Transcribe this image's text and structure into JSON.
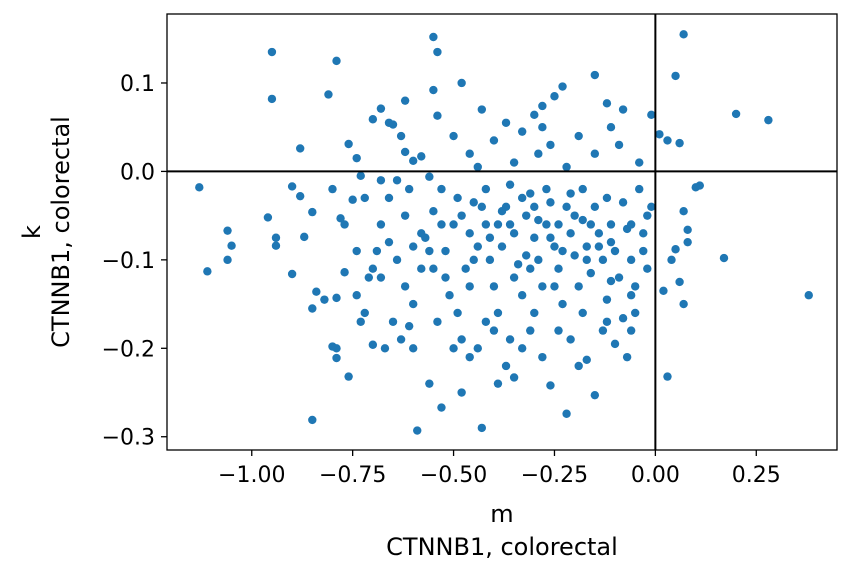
{
  "chart_data": {
    "type": "scatter",
    "title": "",
    "xlabel_line1": "m",
    "xlabel_line2": "CTNNB1, colorectal",
    "ylabel_line1": "k",
    "ylabel_line2": "CTNNB1, colorectal",
    "xlim": [
      -1.21,
      0.45
    ],
    "ylim": [
      -0.315,
      0.178
    ],
    "xticks": [
      -1.0,
      -0.75,
      -0.5,
      -0.25,
      0.0,
      0.25
    ],
    "xtick_labels": [
      "−1.00",
      "−0.75",
      "−0.50",
      "−0.25",
      "0.00",
      "0.25"
    ],
    "yticks": [
      0.1,
      0.0,
      -0.1,
      -0.2,
      -0.3
    ],
    "ytick_labels": [
      "0.1",
      "0.0",
      "−0.1",
      "−0.2",
      "−0.3"
    ],
    "reference_lines": {
      "x": 0.0,
      "y": 0.0
    },
    "marker_color": "#1f77b4",
    "grid": false,
    "legend": "none",
    "points": [
      [
        -1.13,
        -0.018
      ],
      [
        -1.11,
        -0.113
      ],
      [
        -1.06,
        -0.067
      ],
      [
        -1.06,
        -0.1
      ],
      [
        -1.05,
        -0.084
      ],
      [
        -0.95,
        0.135
      ],
      [
        -0.95,
        0.082
      ],
      [
        -0.94,
        -0.075
      ],
      [
        -0.94,
        -0.084
      ],
      [
        -0.96,
        -0.052
      ],
      [
        -0.9,
        -0.017
      ],
      [
        -0.88,
        -0.028
      ],
      [
        -0.9,
        -0.116
      ],
      [
        -0.87,
        -0.074
      ],
      [
        -0.85,
        -0.046
      ],
      [
        -0.84,
        -0.136
      ],
      [
        -0.85,
        -0.281
      ],
      [
        -0.88,
        0.026
      ],
      [
        -0.81,
        0.087
      ],
      [
        -0.79,
        0.125
      ],
      [
        -0.8,
        -0.02
      ],
      [
        -0.78,
        -0.053
      ],
      [
        -0.82,
        -0.145
      ],
      [
        -0.79,
        -0.143
      ],
      [
        -0.76,
        -0.232
      ],
      [
        -0.79,
        -0.2
      ],
      [
        -0.8,
        -0.198
      ],
      [
        -0.79,
        -0.211
      ],
      [
        -0.77,
        -0.114
      ],
      [
        -0.75,
        -0.032
      ],
      [
        -0.85,
        -0.155
      ],
      [
        -0.76,
        0.031
      ],
      [
        -0.74,
        0.015
      ],
      [
        -0.7,
        0.059
      ],
      [
        -0.68,
        0.071
      ],
      [
        -0.66,
        0.055
      ],
      [
        -0.65,
        0.053
      ],
      [
        -0.63,
        0.04
      ],
      [
        -0.68,
        -0.01
      ],
      [
        -0.73,
        -0.005
      ],
      [
        -0.6,
        0.012
      ],
      [
        -0.62,
        0.022
      ],
      [
        -0.58,
        0.017
      ],
      [
        -0.61,
        -0.02
      ],
      [
        -0.56,
        -0.006
      ],
      [
        -0.62,
        0.08
      ],
      [
        -0.55,
        0.092
      ],
      [
        -0.54,
        0.063
      ],
      [
        -0.55,
        0.152
      ],
      [
        -0.54,
        0.135
      ],
      [
        -0.48,
        0.1
      ],
      [
        -0.43,
        0.07
      ],
      [
        -0.37,
        0.055
      ],
      [
        -0.3,
        0.064
      ],
      [
        -0.28,
        0.05
      ],
      [
        -0.25,
        0.085
      ],
      [
        -0.23,
        0.096
      ],
      [
        -0.28,
        0.074
      ],
      [
        -0.15,
        0.109
      ],
      [
        -0.12,
        0.077
      ],
      [
        -0.08,
        0.07
      ],
      [
        -0.01,
        0.064
      ],
      [
        0.01,
        0.042
      ],
      [
        0.07,
        0.155
      ],
      [
        0.05,
        0.108
      ],
      [
        0.06,
        0.032
      ],
      [
        0.03,
        0.035
      ],
      [
        0.2,
        0.065
      ],
      [
        0.28,
        0.058
      ],
      [
        0.38,
        -0.14
      ],
      [
        0.17,
        -0.098
      ],
      [
        0.11,
        -0.016
      ],
      [
        0.1,
        -0.018
      ],
      [
        0.07,
        -0.045
      ],
      [
        0.08,
        -0.066
      ],
      [
        0.08,
        -0.08
      ],
      [
        0.05,
        -0.088
      ],
      [
        0.04,
        -0.1
      ],
      [
        0.07,
        -0.15
      ],
      [
        0.02,
        -0.135
      ],
      [
        0.03,
        -0.232
      ],
      [
        0.06,
        -0.125
      ],
      [
        -0.02,
        -0.05
      ],
      [
        -0.03,
        -0.09
      ],
      [
        -0.05,
        -0.16
      ],
      [
        -0.06,
        -0.18
      ],
      [
        -0.08,
        -0.166
      ],
      [
        -0.07,
        -0.21
      ],
      [
        -0.1,
        -0.195
      ],
      [
        -0.11,
        -0.124
      ],
      [
        -0.13,
        -0.18
      ],
      [
        -0.15,
        -0.253
      ],
      [
        -0.17,
        -0.213
      ],
      [
        -0.19,
        -0.22
      ],
      [
        -0.21,
        -0.19
      ],
      [
        -0.22,
        -0.274
      ],
      [
        -0.26,
        -0.242
      ],
      [
        -0.28,
        -0.21
      ],
      [
        -0.31,
        -0.18
      ],
      [
        -0.33,
        -0.2
      ],
      [
        -0.35,
        -0.233
      ],
      [
        -0.37,
        -0.22
      ],
      [
        -0.39,
        -0.24
      ],
      [
        -0.4,
        -0.18
      ],
      [
        -0.43,
        -0.29
      ],
      [
        -0.44,
        -0.2
      ],
      [
        -0.46,
        -0.21
      ],
      [
        -0.48,
        -0.25
      ],
      [
        -0.5,
        -0.2
      ],
      [
        -0.53,
        -0.267
      ],
      [
        -0.56,
        -0.24
      ],
      [
        -0.59,
        -0.293
      ],
      [
        -0.6,
        -0.2
      ],
      [
        -0.63,
        -0.19
      ],
      [
        -0.65,
        -0.17
      ],
      [
        -0.67,
        -0.2
      ],
      [
        -0.7,
        -0.196
      ],
      [
        -0.72,
        -0.16
      ],
      [
        -0.74,
        -0.14
      ],
      [
        -0.71,
        -0.12
      ],
      [
        -0.69,
        -0.09
      ],
      [
        -0.68,
        -0.06
      ],
      [
        -0.66,
        -0.03
      ],
      [
        -0.64,
        -0.1
      ],
      [
        -0.62,
        -0.13
      ],
      [
        -0.6,
        -0.15
      ],
      [
        -0.58,
        -0.11
      ],
      [
        -0.57,
        -0.075
      ],
      [
        -0.55,
        -0.045
      ],
      [
        -0.53,
        -0.02
      ],
      [
        -0.52,
        -0.09
      ],
      [
        -0.51,
        -0.14
      ],
      [
        -0.49,
        -0.16
      ],
      [
        -0.47,
        -0.11
      ],
      [
        -0.46,
        -0.07
      ],
      [
        -0.45,
        -0.035
      ],
      [
        -0.44,
        0.005
      ],
      [
        -0.42,
        -0.06
      ],
      [
        -0.41,
        -0.1
      ],
      [
        -0.4,
        -0.13
      ],
      [
        -0.39,
        -0.16
      ],
      [
        -0.38,
        -0.085
      ],
      [
        -0.37,
        -0.04
      ],
      [
        -0.36,
        -0.015
      ],
      [
        -0.35,
        -0.07
      ],
      [
        -0.34,
        -0.105
      ],
      [
        -0.33,
        -0.14
      ],
      [
        -0.32,
        -0.05
      ],
      [
        -0.31,
        -0.025
      ],
      [
        -0.3,
        -0.075
      ],
      [
        -0.29,
        -0.1
      ],
      [
        -0.28,
        -0.13
      ],
      [
        -0.27,
        -0.06
      ],
      [
        -0.26,
        -0.035
      ],
      [
        -0.25,
        -0.085
      ],
      [
        -0.24,
        -0.11
      ],
      [
        -0.23,
        -0.15
      ],
      [
        -0.22,
        -0.04
      ],
      [
        -0.21,
        -0.07
      ],
      [
        -0.2,
        -0.095
      ],
      [
        -0.19,
        -0.13
      ],
      [
        -0.18,
        -0.055
      ],
      [
        -0.17,
        -0.085
      ],
      [
        -0.16,
        -0.115
      ],
      [
        -0.15,
        -0.04
      ],
      [
        -0.14,
        -0.07
      ],
      [
        -0.13,
        -0.1
      ],
      [
        -0.12,
        -0.145
      ],
      [
        -0.11,
        -0.06
      ],
      [
        -0.1,
        -0.09
      ],
      [
        -0.09,
        -0.12
      ],
      [
        -0.08,
        -0.035
      ],
      [
        -0.07,
        -0.065
      ],
      [
        -0.06,
        -0.1
      ],
      [
        -0.05,
        -0.13
      ],
      [
        -0.04,
        -0.02
      ],
      [
        -0.03,
        -0.07
      ],
      [
        -0.02,
        -0.11
      ],
      [
        -0.01,
        -0.04
      ],
      [
        -0.55,
        -0.11
      ],
      [
        -0.48,
        -0.05
      ],
      [
        -0.42,
        -0.02
      ],
      [
        -0.36,
        -0.06
      ],
      [
        -0.3,
        -0.04
      ],
      [
        -0.24,
        -0.06
      ],
      [
        -0.18,
        -0.02
      ],
      [
        -0.12,
        -0.03
      ],
      [
        -0.5,
        -0.06
      ],
      [
        -0.44,
        -0.085
      ],
      [
        -0.38,
        -0.045
      ],
      [
        -0.32,
        -0.095
      ],
      [
        -0.26,
        -0.075
      ],
      [
        -0.2,
        -0.05
      ],
      [
        -0.14,
        -0.085
      ],
      [
        -0.58,
        -0.07
      ],
      [
        -0.62,
        -0.05
      ],
      [
        -0.66,
        -0.08
      ],
      [
        -0.7,
        -0.11
      ],
      [
        -0.74,
        -0.09
      ],
      [
        -0.77,
        -0.06
      ],
      [
        -0.72,
        -0.03
      ],
      [
        -0.64,
        -0.01
      ],
      [
        -0.56,
        -0.09
      ],
      [
        -0.52,
        -0.12
      ],
      [
        -0.46,
        -0.13
      ],
      [
        -0.41,
        -0.075
      ],
      [
        -0.35,
        -0.12
      ],
      [
        -0.29,
        -0.055
      ],
      [
        -0.23,
        -0.09
      ],
      [
        -0.17,
        -0.1
      ],
      [
        -0.11,
        -0.08
      ],
      [
        -0.06,
        -0.06
      ],
      [
        -0.43,
        -0.04
      ],
      [
        -0.33,
        -0.03
      ],
      [
        -0.27,
        -0.02
      ],
      [
        -0.21,
        -0.025
      ],
      [
        -0.16,
        -0.06
      ],
      [
        -0.49,
        -0.03
      ],
      [
        -0.39,
        -0.06
      ],
      [
        -0.31,
        -0.11
      ],
      [
        -0.25,
        -0.13
      ],
      [
        -0.45,
        -0.1
      ],
      [
        -0.53,
        -0.06
      ],
      [
        -0.6,
        -0.085
      ],
      [
        -0.68,
        -0.12
      ],
      [
        -0.73,
        -0.17
      ],
      [
        -0.61,
        -0.175
      ],
      [
        -0.54,
        -0.17
      ],
      [
        -0.48,
        -0.19
      ],
      [
        -0.42,
        -0.17
      ],
      [
        -0.36,
        -0.19
      ],
      [
        -0.3,
        -0.16
      ],
      [
        -0.24,
        -0.18
      ],
      [
        -0.18,
        -0.16
      ],
      [
        -0.12,
        -0.17
      ],
      [
        -0.06,
        -0.14
      ],
      [
        -0.35,
        0.01
      ],
      [
        -0.29,
        0.02
      ],
      [
        -0.22,
        0.005
      ],
      [
        -0.15,
        0.02
      ],
      [
        -0.09,
        0.03
      ],
      [
        -0.04,
        0.01
      ],
      [
        -0.46,
        0.02
      ],
      [
        -0.4,
        0.035
      ],
      [
        -0.5,
        0.04
      ],
      [
        -0.33,
        0.045
      ],
      [
        -0.26,
        0.03
      ],
      [
        -0.19,
        0.04
      ],
      [
        -0.11,
        0.05
      ]
    ]
  }
}
